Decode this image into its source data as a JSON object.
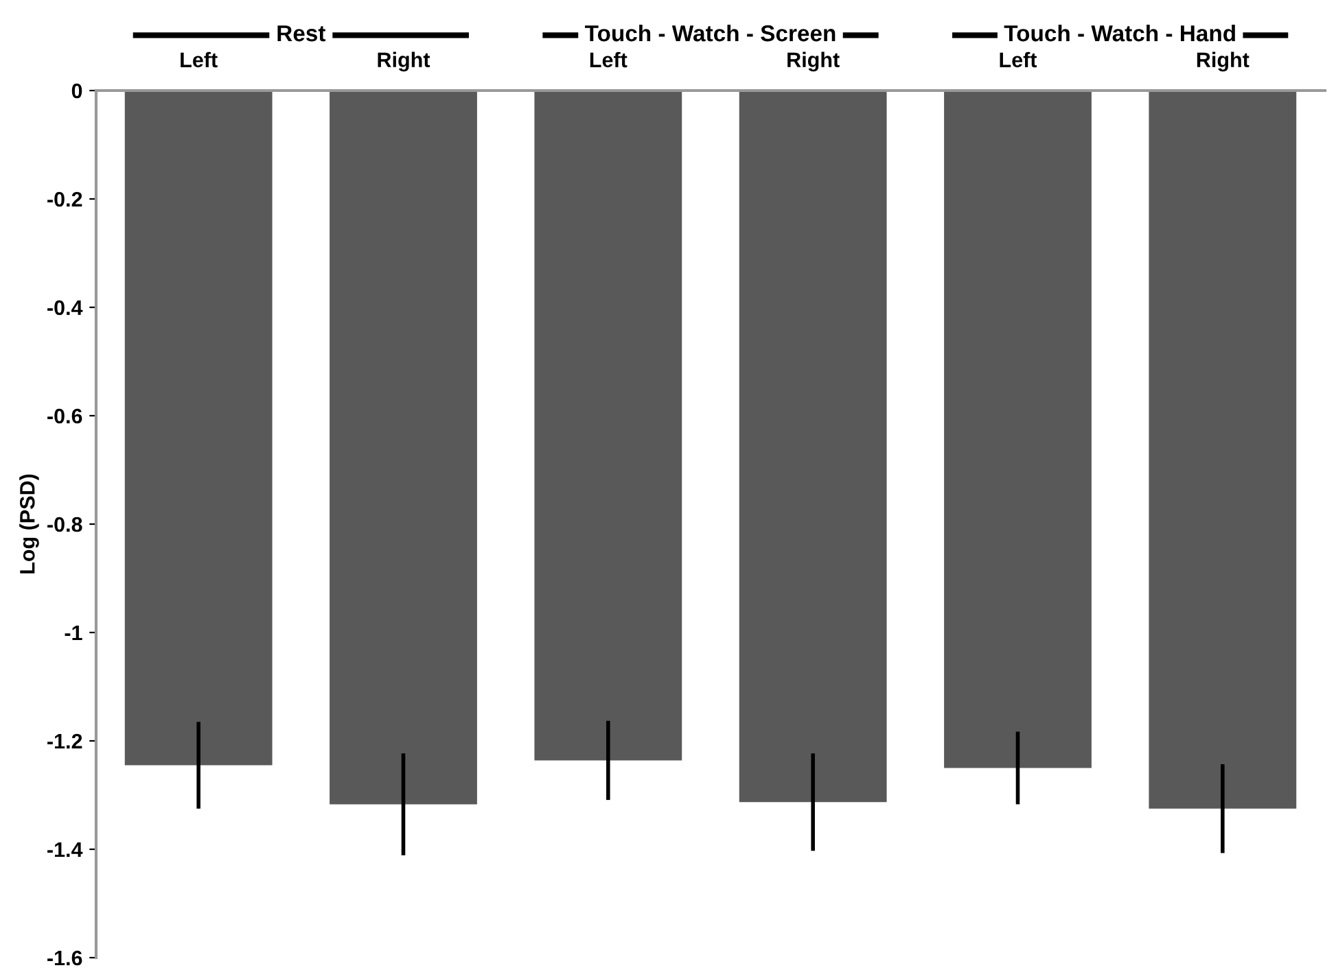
{
  "chart_data": {
    "type": "bar",
    "ylabel": "Log (PSD)",
    "categories": [
      "Left",
      "Right",
      "Left",
      "Right",
      "Left",
      "Right"
    ],
    "values": [
      -1.245,
      -1.317,
      -1.236,
      -1.313,
      -1.25,
      -1.325
    ],
    "errors": [
      0.08,
      0.094,
      0.073,
      0.09,
      0.067,
      0.082
    ],
    "color": "#595959",
    "ylim": [
      -1.6,
      0
    ],
    "yticks": [
      0,
      -0.2,
      -0.4,
      -0.6,
      -0.8,
      -1,
      -1.2,
      -1.4,
      -1.6
    ],
    "grid": false,
    "annotations": [
      "Rest",
      "Touch - Watch - Screen",
      "Touch - Watch - Hand"
    ]
  }
}
